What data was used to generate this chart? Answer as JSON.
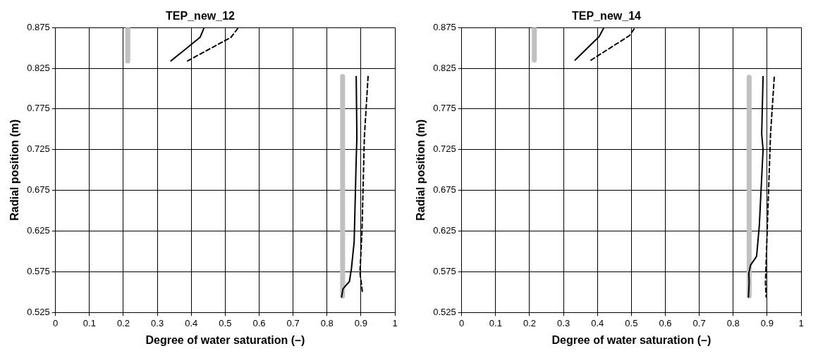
{
  "chart_data": [
    {
      "type": "line",
      "title": "TEP_new_12",
      "xlabel": "Degree of water saturation (–)",
      "ylabel": "Radial position (m)",
      "xlim": [
        0,
        1
      ],
      "ylim": [
        0.525,
        0.875
      ],
      "xticks": [
        0,
        0.1,
        0.2,
        0.3,
        0.4,
        0.5,
        0.6,
        0.7,
        0.8,
        0.9,
        1
      ],
      "yticks": [
        0.525,
        0.575,
        0.625,
        0.675,
        0.725,
        0.775,
        0.825,
        0.875
      ],
      "grid": true,
      "legend": false,
      "marker": "none",
      "series": [
        {
          "color": "#c0c0c0",
          "line_style": "solid",
          "x": [
            0.213,
            0.213,
            null,
            0.846,
            0.846
          ],
          "values": [
            0.875,
            0.834,
            null,
            0.815,
            0.545
          ]
        },
        {
          "color": "#000000",
          "line_style": "solid",
          "x": [
            0.34,
            0.426,
            0.437,
            null,
            0.886,
            0.888,
            0.886,
            0.88,
            0.872,
            0.866,
            0.847,
            0.843
          ],
          "values": [
            0.834,
            0.863,
            0.874,
            null,
            0.815,
            0.74,
            0.713,
            0.612,
            0.579,
            0.563,
            0.554,
            0.544
          ]
        },
        {
          "color": "#000000",
          "line_style": "dashed",
          "x": [
            0.389,
            0.517,
            0.539,
            null,
            0.921,
            0.91,
            0.903,
            0.897,
            0.905
          ],
          "values": [
            0.834,
            0.863,
            0.875,
            null,
            0.815,
            0.74,
            0.624,
            0.574,
            0.548
          ]
        }
      ]
    },
    {
      "type": "line",
      "title": "TEP_new_14",
      "xlabel": "Degree of water saturation (–)",
      "ylabel": "Radial position (m)",
      "xlim": [
        0,
        1
      ],
      "ylim": [
        0.525,
        0.875
      ],
      "xticks": [
        0,
        0.1,
        0.2,
        0.3,
        0.4,
        0.5,
        0.6,
        0.7,
        0.8,
        0.9,
        1
      ],
      "yticks": [
        0.525,
        0.575,
        0.625,
        0.675,
        0.725,
        0.775,
        0.825,
        0.875
      ],
      "grid": true,
      "legend": false,
      "marker": "none",
      "series": [
        {
          "color": "#c0c0c0",
          "line_style": "solid",
          "x": [
            0.214,
            0.214,
            null,
            0.847,
            0.847
          ],
          "values": [
            0.875,
            0.835,
            null,
            0.814,
            0.545
          ]
        },
        {
          "color": "#000000",
          "line_style": "solid",
          "x": [
            0.334,
            0.405,
            0.419,
            null,
            0.888,
            0.884,
            0.888,
            0.877,
            0.869,
            0.851,
            0.846,
            0.847,
            0.845
          ],
          "values": [
            0.835,
            0.864,
            0.875,
            null,
            0.815,
            0.744,
            0.725,
            0.632,
            0.594,
            0.583,
            0.573,
            0.562,
            0.544
          ]
        },
        {
          "color": "#000000",
          "line_style": "dashed",
          "x": [
            0.381,
            0.494,
            0.511,
            null,
            0.921,
            0.91,
            0.9,
            0.895,
            0.897
          ],
          "values": [
            0.835,
            0.865,
            0.875,
            null,
            0.814,
            0.744,
            0.623,
            0.562,
            0.544
          ]
        }
      ]
    }
  ]
}
